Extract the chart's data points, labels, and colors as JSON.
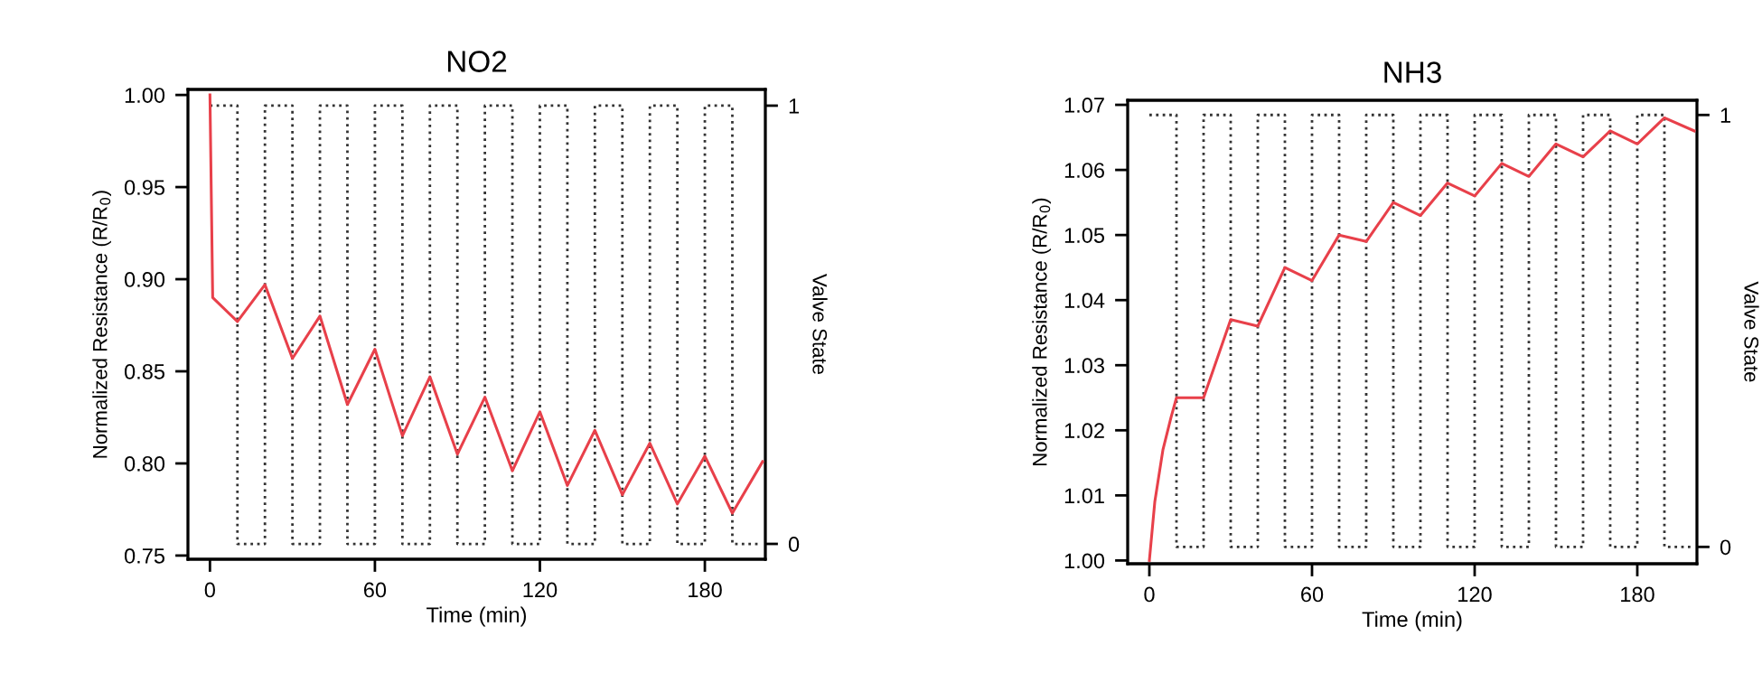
{
  "chart_data": [
    {
      "type": "line",
      "title": "NO2",
      "xlabel": "Time (min)",
      "ylabel": "Normalized Resistance (R/R$_{0}$)",
      "y2label": "Valve State",
      "xlim": [
        -8,
        202
      ],
      "xticks": [
        0,
        60,
        120,
        180
      ],
      "ylim": [
        0.748,
        1.003
      ],
      "yticks": [
        {
          "value": 0.75,
          "label": "0.75"
        },
        {
          "value": 0.8,
          "label": "0.80"
        },
        {
          "value": 0.85,
          "label": "0.85"
        },
        {
          "value": 0.9,
          "label": "0.90"
        },
        {
          "value": 0.95,
          "label": "0.95"
        },
        {
          "value": 1.0,
          "label": "1.00"
        }
      ],
      "y2lim": [
        -0.035,
        1.037
      ],
      "y2ticks": [
        0,
        1
      ],
      "series": [
        {
          "color": "#e8404a",
          "line_style": "solid",
          "x": [
            0,
            1,
            10,
            20,
            30,
            40,
            50,
            60,
            70,
            80,
            90,
            100,
            110,
            120,
            130,
            140,
            150,
            160,
            170,
            180,
            190,
            201
          ],
          "values": [
            1.0,
            0.89,
            0.877,
            0.897,
            0.857,
            0.88,
            0.832,
            0.862,
            0.815,
            0.847,
            0.805,
            0.836,
            0.796,
            0.828,
            0.788,
            0.818,
            0.783,
            0.811,
            0.778,
            0.804,
            0.773,
            0.801
          ]
        },
        {
          "type": "step",
          "axis": "y2",
          "color": "#333333",
          "line_style": "dotted",
          "x": [
            0,
            10,
            20,
            30,
            40,
            50,
            60,
            70,
            80,
            90,
            100,
            110,
            120,
            130,
            140,
            150,
            160,
            170,
            180,
            190,
            200
          ],
          "values": [
            1,
            0,
            1,
            0,
            1,
            0,
            1,
            0,
            1,
            0,
            1,
            0,
            1,
            0,
            1,
            0,
            1,
            0,
            1,
            0,
            0
          ]
        }
      ]
    },
    {
      "type": "line",
      "title": "NH3",
      "xlabel": "Time (min)",
      "ylabel": "Normalized Resistance (R/R$_{0}$)",
      "y2label": "Valve State",
      "xlim": [
        -8,
        202
      ],
      "xticks": [
        0,
        60,
        120,
        180
      ],
      "ylim": [
        0.9995,
        1.0707
      ],
      "yticks": [
        {
          "value": 1.0,
          "label": "1.00"
        },
        {
          "value": 1.01,
          "label": "1.01"
        },
        {
          "value": 1.02,
          "label": "1.02"
        },
        {
          "value": 1.03,
          "label": "1.03"
        },
        {
          "value": 1.04,
          "label": "1.04"
        },
        {
          "value": 1.05,
          "label": "1.05"
        },
        {
          "value": 1.06,
          "label": "1.06"
        },
        {
          "value": 1.07,
          "label": "1.07"
        }
      ],
      "y2lim": [
        -0.039,
        1.034
      ],
      "y2ticks": [
        0,
        1
      ],
      "series": [
        {
          "color": "#e8404a",
          "line_style": "solid",
          "x": [
            0,
            2,
            5,
            8,
            10,
            20,
            30,
            40,
            50,
            60,
            70,
            80,
            90,
            100,
            110,
            120,
            130,
            140,
            150,
            160,
            170,
            180,
            190,
            201
          ],
          "values": [
            1.0,
            1.009,
            1.017,
            1.022,
            1.025,
            1.025,
            1.037,
            1.036,
            1.045,
            1.043,
            1.05,
            1.049,
            1.055,
            1.053,
            1.058,
            1.056,
            1.061,
            1.059,
            1.064,
            1.062,
            1.066,
            1.064,
            1.068,
            1.066
          ]
        },
        {
          "type": "step",
          "axis": "y2",
          "color": "#333333",
          "line_style": "dotted",
          "x": [
            0,
            10,
            20,
            30,
            40,
            50,
            60,
            70,
            80,
            90,
            100,
            110,
            120,
            130,
            140,
            150,
            160,
            170,
            180,
            190,
            200
          ],
          "values": [
            1,
            0,
            1,
            0,
            1,
            0,
            1,
            0,
            1,
            0,
            1,
            0,
            1,
            0,
            1,
            0,
            1,
            0,
            1,
            0,
            0
          ]
        }
      ]
    }
  ]
}
